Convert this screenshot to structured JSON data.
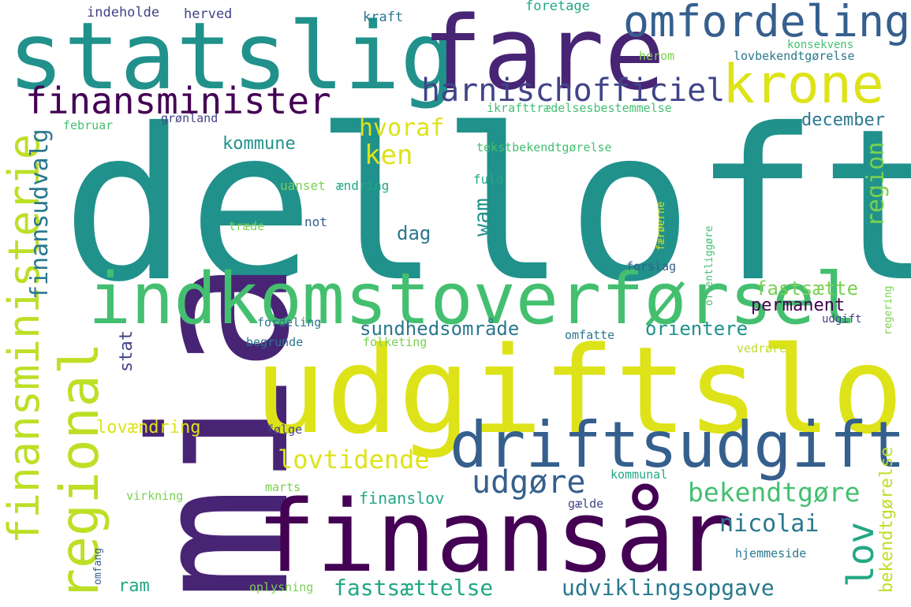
{
  "words": {
    "delloft": "delloft",
    "statslig": "statslig",
    "fare": "fare",
    "mia": "mia",
    "udgiftsloft": "udgiftsloft",
    "finansar": "finansår",
    "indkomstoverforsel": "indkomstoverførsel",
    "driftsudgift": "driftsudgift",
    "omfordeling": "omfordeling",
    "krone": "krone",
    "finansminister": "finansminister",
    "harnischofficiel": "harnischofficiel",
    "regional": "regional",
    "finansministerie": "finansministerie",
    "finansudvalg": "finansudvalg",
    "hvoraf": "hvoraf",
    "ken": "ken",
    "kommune": "kommune",
    "december": "december",
    "region": "region",
    "wam": "wam",
    "dag": "dag",
    "fastsaette": "fastsætte",
    "permanent": "permanent",
    "sundhedsomrade": "sundhedsområde",
    "orientere": "orientere",
    "stat": "stat",
    "lovaendring": "lovændring",
    "lovtidende": "lovtidende",
    "udgore": "udgøre",
    "bekendtgore": "bekendtgøre",
    "finanslov": "finanslov",
    "nicolai": "nicolai",
    "lov": "lov",
    "bekendtgorelse": "bekendtgørelse",
    "fastsaettelse": "fastsættelse",
    "udviklingsopgave": "udviklingsopgave",
    "ram": "ram",
    "indeholde": "indeholde",
    "herved": "herved",
    "kraft": "kraft",
    "foretage": "foretage",
    "konsekvens": "konsekvens",
    "herom": "herom",
    "lovbekendtgorelse": "lovbekendtgørelse",
    "ikrafttraedelsesbestemmelse": "ikrafttrædelsesbestemmelse",
    "februar": "februar",
    "gronland": "grønland",
    "tekstbekendtgorelse": "tekstbekendtgørelse",
    "uanset": "uanset",
    "aendring": "ændring",
    "fuld": "fuld",
    "traede": "træde",
    "not": "not",
    "faeroerne": "færøerne",
    "offentliggore": "offentliggøre",
    "forslag": "forslag",
    "regering": "regering",
    "fordeling": "fordeling",
    "begrunde": "begrunde",
    "folketing": "folketing",
    "omfatte": "omfatte",
    "udgift": "udgift",
    "vedrore": "vedrøre",
    "folge": "følge",
    "marts": "marts",
    "kommunal": "kommunal",
    "virkning": "virkning",
    "gaelde": "gælde",
    "omfang": "omfang",
    "hjemmeside": "hjemmeside",
    "oplysning": "oplysning"
  },
  "colors": {
    "dark_purple": "#440154",
    "purple": "#482475",
    "indigo": "#414487",
    "blue": "#355f8d",
    "steel": "#2a788e",
    "teal": "#21918c",
    "green_teal": "#22a884",
    "green": "#44bf70",
    "light_green": "#7ad151",
    "lime": "#bddf26",
    "yellow": "#dde318"
  }
}
